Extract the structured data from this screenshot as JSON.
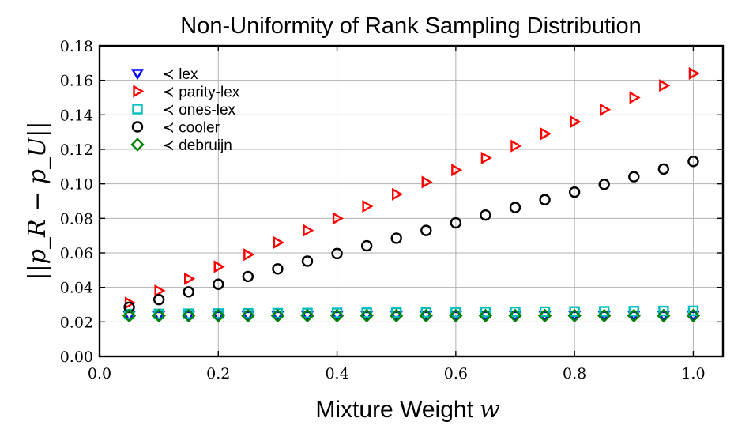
{
  "chart_data": {
    "type": "scatter",
    "title": "Non-Uniformity of Rank Sampling Distribution",
    "xlabel": "Mixture Weight",
    "xlabel_var": "w",
    "ylabel": "||p_R − p_U||",
    "xlim": [
      0.0,
      1.05
    ],
    "ylim": [
      0.0,
      0.18
    ],
    "xticks": [
      "0.0",
      "0.2",
      "0.4",
      "0.6",
      "0.8",
      "1.0"
    ],
    "xtick_values": [
      0.0,
      0.2,
      0.4,
      0.6,
      0.8,
      1.0
    ],
    "yticks": [
      "0.00",
      "0.02",
      "0.04",
      "0.06",
      "0.08",
      "0.10",
      "0.12",
      "0.14",
      "0.16",
      "0.18"
    ],
    "ytick_values": [
      0.0,
      0.02,
      0.04,
      0.06,
      0.08,
      0.1,
      0.12,
      0.14,
      0.16,
      0.18
    ],
    "grid": true,
    "legend_position": "top-left",
    "x": [
      0.05,
      0.1,
      0.15,
      0.2,
      0.25,
      0.3,
      0.35,
      0.4,
      0.45,
      0.5,
      0.55,
      0.6,
      0.65,
      0.7,
      0.75,
      0.8,
      0.85,
      0.9,
      0.95,
      1.0
    ],
    "series": [
      {
        "name": "≺ lex",
        "marker": "triangle-down",
        "color": "#0000ff",
        "values": [
          0.0236,
          0.0236,
          0.0236,
          0.0236,
          0.0236,
          0.0236,
          0.0236,
          0.0236,
          0.0236,
          0.0236,
          0.0236,
          0.0236,
          0.0236,
          0.0236,
          0.0236,
          0.0236,
          0.0236,
          0.0236,
          0.0236,
          0.0236
        ]
      },
      {
        "name": "≺ parity-lex",
        "marker": "triangle-right",
        "color": "#ff0000",
        "values": [
          0.031,
          0.038,
          0.045,
          0.052,
          0.059,
          0.066,
          0.073,
          0.08,
          0.087,
          0.094,
          0.101,
          0.108,
          0.115,
          0.122,
          0.129,
          0.136,
          0.143,
          0.15,
          0.157,
          0.164
        ]
      },
      {
        "name": "≺ ones-lex",
        "marker": "square",
        "color": "#00bfbf",
        "values": [
          0.0245,
          0.0246,
          0.0247,
          0.0248,
          0.0249,
          0.025,
          0.0251,
          0.0252,
          0.0253,
          0.0254,
          0.0255,
          0.0256,
          0.0257,
          0.0258,
          0.0259,
          0.026,
          0.0261,
          0.0262,
          0.0263,
          0.0264
        ]
      },
      {
        "name": "≺ cooler",
        "marker": "circle",
        "color": "#000000",
        "values": [
          0.0285,
          0.0329,
          0.0374,
          0.0418,
          0.0463,
          0.0507,
          0.0552,
          0.0596,
          0.0641,
          0.0685,
          0.073,
          0.0774,
          0.0819,
          0.0863,
          0.0908,
          0.0952,
          0.0997,
          0.1041,
          0.1086,
          0.113
        ]
      },
      {
        "name": "≺ debruijn",
        "marker": "diamond",
        "color": "#008000",
        "values": [
          0.0236,
          0.0236,
          0.0236,
          0.0236,
          0.0236,
          0.0236,
          0.0236,
          0.0236,
          0.0236,
          0.0236,
          0.0236,
          0.0236,
          0.0236,
          0.0236,
          0.0236,
          0.0236,
          0.0236,
          0.0236,
          0.0236,
          0.0236
        ]
      }
    ]
  }
}
